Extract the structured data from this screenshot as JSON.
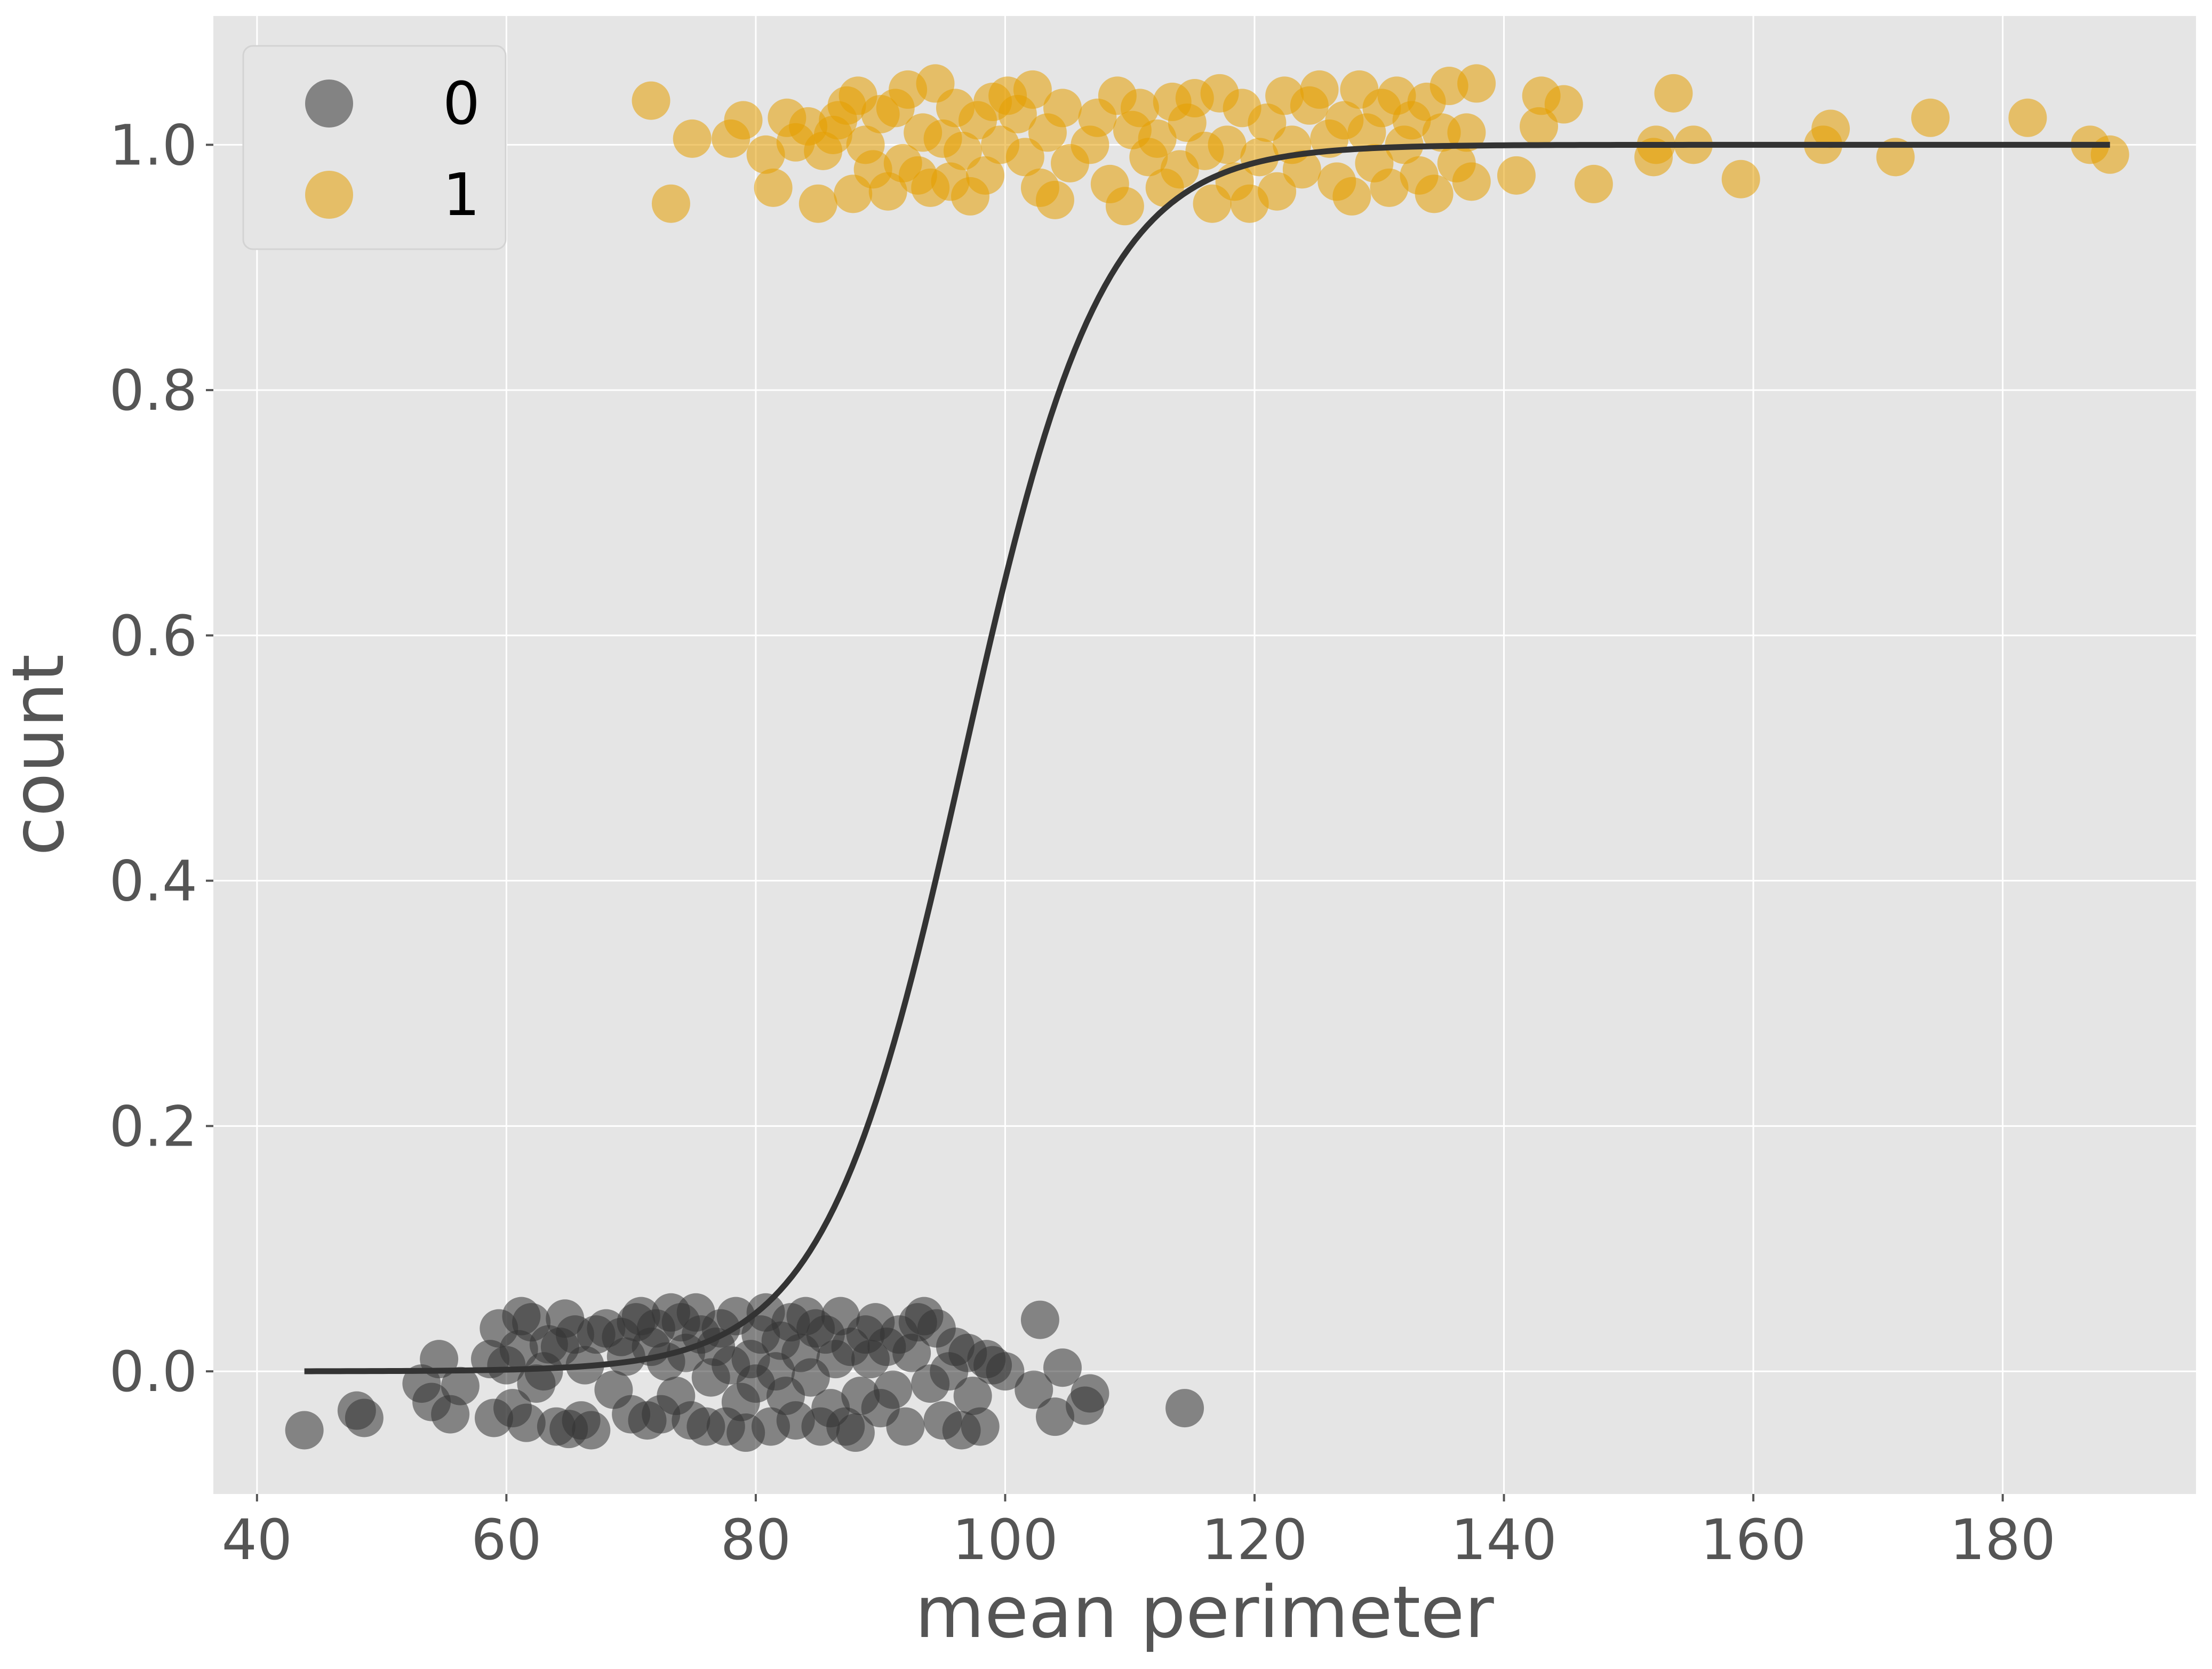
{
  "chart_data": {
    "type": "scatter",
    "title": "",
    "xlabel": "mean perimeter",
    "ylabel": "count",
    "xlim": [
      36.5,
      195.5
    ],
    "ylim": [
      -0.1,
      1.105
    ],
    "xticks": [
      40,
      60,
      80,
      100,
      120,
      140,
      160,
      180
    ],
    "yticks": [
      0.0,
      0.2,
      0.4,
      0.6,
      0.8,
      1.0
    ],
    "xtick_labels": [
      "40",
      "60",
      "80",
      "100",
      "120",
      "140",
      "160",
      "180"
    ],
    "ytick_labels": [
      "0.0",
      "0.2",
      "0.4",
      "0.6",
      "0.8",
      "1.0"
    ],
    "grid": true,
    "background_color": "#e5e5e5",
    "grid_color": "#ffffff",
    "legend": {
      "placement": "top-left",
      "entries": [
        {
          "label": "0",
          "color": "#333333"
        },
        {
          "label": "1",
          "color": "#e69f00"
        }
      ]
    },
    "series": [
      {
        "name": "0",
        "color": "#333333",
        "opacity": 0.55,
        "points": [
          [
            43.8,
            -0.048
          ],
          [
            48.0,
            -0.032
          ],
          [
            48.6,
            -0.038
          ],
          [
            53.2,
            -0.01
          ],
          [
            54.0,
            -0.025
          ],
          [
            54.6,
            0.01
          ],
          [
            55.5,
            -0.035
          ],
          [
            56.3,
            -0.012
          ],
          [
            58.7,
            0.01
          ],
          [
            59.0,
            -0.038
          ],
          [
            59.4,
            0.035
          ],
          [
            60.0,
            0.005
          ],
          [
            60.5,
            -0.03
          ],
          [
            61.0,
            0.018
          ],
          [
            61.2,
            0.045
          ],
          [
            61.6,
            -0.042
          ],
          [
            62.0,
            0.04
          ],
          [
            62.4,
            -0.01
          ],
          [
            63.0,
            0.0
          ],
          [
            63.4,
            0.022
          ],
          [
            64.0,
            -0.045
          ],
          [
            64.3,
            0.02
          ],
          [
            64.7,
            0.043
          ],
          [
            65.0,
            -0.047
          ],
          [
            65.5,
            0.03
          ],
          [
            66.0,
            -0.04
          ],
          [
            66.3,
            0.005
          ],
          [
            66.8,
            -0.048
          ],
          [
            67.2,
            0.03
          ],
          [
            68.0,
            0.035
          ],
          [
            68.6,
            -0.015
          ],
          [
            69.2,
            0.028
          ],
          [
            69.6,
            0.012
          ],
          [
            70.0,
            -0.035
          ],
          [
            70.4,
            0.04
          ],
          [
            70.8,
            0.045
          ],
          [
            71.3,
            -0.04
          ],
          [
            71.6,
            0.02
          ],
          [
            72.0,
            0.035
          ],
          [
            72.4,
            -0.035
          ],
          [
            72.8,
            0.008
          ],
          [
            73.2,
            0.048
          ],
          [
            73.6,
            -0.02
          ],
          [
            74.0,
            0.04
          ],
          [
            74.4,
            0.015
          ],
          [
            74.8,
            -0.04
          ],
          [
            75.2,
            0.048
          ],
          [
            75.6,
            0.03
          ],
          [
            76.0,
            -0.045
          ],
          [
            76.4,
            -0.005
          ],
          [
            76.8,
            0.02
          ],
          [
            77.2,
            0.035
          ],
          [
            77.6,
            -0.045
          ],
          [
            78.0,
            0.005
          ],
          [
            78.4,
            0.045
          ],
          [
            78.8,
            -0.025
          ],
          [
            79.2,
            -0.05
          ],
          [
            79.6,
            0.01
          ],
          [
            80.0,
            -0.01
          ],
          [
            80.4,
            0.03
          ],
          [
            80.8,
            0.048
          ],
          [
            81.2,
            -0.045
          ],
          [
            81.6,
            0.0
          ],
          [
            82.0,
            0.025
          ],
          [
            82.4,
            -0.02
          ],
          [
            82.8,
            0.04
          ],
          [
            83.2,
            -0.04
          ],
          [
            83.6,
            0.015
          ],
          [
            84.0,
            0.045
          ],
          [
            84.4,
            -0.005
          ],
          [
            84.8,
            0.035
          ],
          [
            85.2,
            -0.045
          ],
          [
            85.6,
            0.03
          ],
          [
            86.0,
            -0.03
          ],
          [
            86.4,
            0.01
          ],
          [
            86.8,
            0.045
          ],
          [
            87.2,
            -0.045
          ],
          [
            87.6,
            0.02
          ],
          [
            88.0,
            -0.05
          ],
          [
            88.4,
            -0.02
          ],
          [
            88.8,
            0.03
          ],
          [
            89.2,
            0.01
          ],
          [
            89.6,
            0.04
          ],
          [
            90.0,
            -0.03
          ],
          [
            90.5,
            0.02
          ],
          [
            91.0,
            -0.015
          ],
          [
            91.5,
            0.03
          ],
          [
            92.0,
            -0.045
          ],
          [
            92.5,
            0.015
          ],
          [
            93.0,
            0.04
          ],
          [
            93.5,
            0.045
          ],
          [
            94.0,
            -0.01
          ],
          [
            94.5,
            0.035
          ],
          [
            95.0,
            -0.04
          ],
          [
            95.5,
            0.0
          ],
          [
            96.0,
            0.02
          ],
          [
            96.5,
            -0.048
          ],
          [
            97.0,
            0.015
          ],
          [
            97.4,
            -0.02
          ],
          [
            98.0,
            -0.045
          ],
          [
            98.5,
            0.01
          ],
          [
            99.0,
            0.005
          ],
          [
            100.0,
            0.0
          ],
          [
            102.3,
            -0.015
          ],
          [
            102.8,
            0.042
          ],
          [
            104.0,
            -0.037
          ],
          [
            104.6,
            0.003
          ],
          [
            106.4,
            -0.028
          ],
          [
            106.8,
            -0.018
          ],
          [
            114.4,
            -0.03
          ]
        ]
      },
      {
        "name": "1",
        "color": "#e69f00",
        "opacity": 0.55,
        "points": [
          [
            71.6,
            1.036
          ],
          [
            73.2,
            0.952
          ],
          [
            74.9,
            1.005
          ],
          [
            78.0,
            1.005
          ],
          [
            79.0,
            1.02
          ],
          [
            80.8,
            0.992
          ],
          [
            81.4,
            0.965
          ],
          [
            82.5,
            1.022
          ],
          [
            83.2,
            1.002
          ],
          [
            84.2,
            1.015
          ],
          [
            85.0,
            0.952
          ],
          [
            85.4,
            0.995
          ],
          [
            86.2,
            1.008
          ],
          [
            86.6,
            1.02
          ],
          [
            87.3,
            1.032
          ],
          [
            87.8,
            0.96
          ],
          [
            88.2,
            1.04
          ],
          [
            88.8,
            1.0
          ],
          [
            89.4,
            0.98
          ],
          [
            90.0,
            1.025
          ],
          [
            90.6,
            0.962
          ],
          [
            91.2,
            1.03
          ],
          [
            91.8,
            0.985
          ],
          [
            92.2,
            1.045
          ],
          [
            93.0,
            0.975
          ],
          [
            93.4,
            1.01
          ],
          [
            94.0,
            0.965
          ],
          [
            94.4,
            1.05
          ],
          [
            95.0,
            1.005
          ],
          [
            95.6,
            0.97
          ],
          [
            96.0,
            1.03
          ],
          [
            96.6,
            0.995
          ],
          [
            97.2,
            0.958
          ],
          [
            97.8,
            1.02
          ],
          [
            98.4,
            0.975
          ],
          [
            99.0,
            1.035
          ],
          [
            99.6,
            1.0
          ],
          [
            100.2,
            1.04
          ],
          [
            101.0,
            1.025
          ],
          [
            101.6,
            0.99
          ],
          [
            102.2,
            1.045
          ],
          [
            102.8,
            0.965
          ],
          [
            103.4,
            1.01
          ],
          [
            104.0,
            0.955
          ],
          [
            104.6,
            1.03
          ],
          [
            105.2,
            0.985
          ],
          [
            106.8,
            1.0
          ],
          [
            107.4,
            1.022
          ],
          [
            108.4,
            0.968
          ],
          [
            109.0,
            1.04
          ],
          [
            109.6,
            0.95
          ],
          [
            110.2,
            1.012
          ],
          [
            110.8,
            1.03
          ],
          [
            111.5,
            0.99
          ],
          [
            112.2,
            1.005
          ],
          [
            112.8,
            0.965
          ],
          [
            113.4,
            1.035
          ],
          [
            114.0,
            0.98
          ],
          [
            114.6,
            1.018
          ],
          [
            115.2,
            1.038
          ],
          [
            116.0,
            0.995
          ],
          [
            116.6,
            0.952
          ],
          [
            117.2,
            1.042
          ],
          [
            117.8,
            1.0
          ],
          [
            118.4,
            0.97
          ],
          [
            119.0,
            1.03
          ],
          [
            119.6,
            0.952
          ],
          [
            120.4,
            0.99
          ],
          [
            121.0,
            1.018
          ],
          [
            121.8,
            0.962
          ],
          [
            122.4,
            1.04
          ],
          [
            123.0,
            1.0
          ],
          [
            123.8,
            0.98
          ],
          [
            124.4,
            1.032
          ],
          [
            125.2,
            1.045
          ],
          [
            126.0,
            1.005
          ],
          [
            126.6,
            0.97
          ],
          [
            127.2,
            1.02
          ],
          [
            127.8,
            0.958
          ],
          [
            128.4,
            1.045
          ],
          [
            129.0,
            1.01
          ],
          [
            129.6,
            0.985
          ],
          [
            130.2,
            1.03
          ],
          [
            130.8,
            0.965
          ],
          [
            131.4,
            1.04
          ],
          [
            132.0,
            1.0
          ],
          [
            132.6,
            1.02
          ],
          [
            133.2,
            0.975
          ],
          [
            133.8,
            1.035
          ],
          [
            134.4,
            0.96
          ],
          [
            135.0,
            1.01
          ],
          [
            135.6,
            1.048
          ],
          [
            136.2,
            0.985
          ],
          [
            137.0,
            1.01
          ],
          [
            137.4,
            0.97
          ],
          [
            137.8,
            1.05
          ],
          [
            141.0,
            0.975
          ],
          [
            142.8,
            1.015
          ],
          [
            143.0,
            1.04
          ],
          [
            144.8,
            1.033
          ],
          [
            147.2,
            0.968
          ],
          [
            152.0,
            0.99
          ],
          [
            152.2,
            1.0
          ],
          [
            153.6,
            1.042
          ],
          [
            155.2,
            1.0
          ],
          [
            159.0,
            0.972
          ],
          [
            165.6,
            1.0
          ],
          [
            166.2,
            1.013
          ],
          [
            171.4,
            0.99
          ],
          [
            174.2,
            1.022
          ],
          [
            182.0,
            1.022
          ],
          [
            187.0,
            1.0
          ],
          [
            188.6,
            0.992
          ]
        ]
      },
      {
        "name": "",
        "type": "line",
        "color": "#333333",
        "model": {
          "intercept": -17.4,
          "slope": 0.18
        },
        "x_range": [
          43.8,
          188.6
        ]
      }
    ]
  }
}
